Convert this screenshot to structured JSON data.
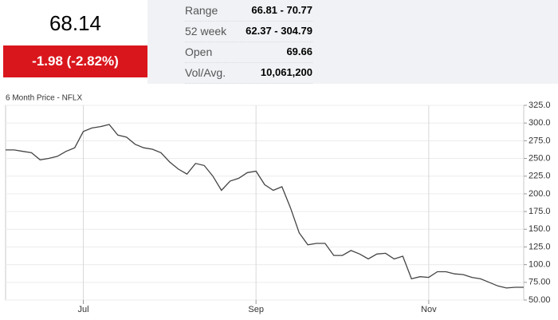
{
  "quote": {
    "price": "68.14",
    "change": "-1.98 (-2.82%)",
    "stats": [
      {
        "label": "Range",
        "value": "66.81 - 70.77"
      },
      {
        "label": "52 week",
        "value": "62.37 - 304.79"
      },
      {
        "label": "Open",
        "value": "69.66"
      },
      {
        "label": "Vol/Avg.",
        "value": "10,061,200"
      }
    ]
  },
  "chart_data": {
    "type": "line",
    "title": "6 Month Price - NFLX",
    "categories": [
      null,
      null,
      null,
      null,
      null,
      null,
      null,
      null,
      null,
      "Jul",
      null,
      null,
      null,
      null,
      null,
      null,
      null,
      null,
      null,
      null,
      null,
      null,
      null,
      null,
      null,
      null,
      null,
      null,
      null,
      "Sep",
      null,
      null,
      null,
      null,
      null,
      null,
      null,
      null,
      null,
      null,
      null,
      null,
      null,
      null,
      null,
      null,
      null,
      null,
      null,
      "Nov",
      null,
      null,
      null,
      null,
      null,
      null,
      null,
      null,
      null,
      null,
      null
    ],
    "values": [
      262,
      262,
      260,
      258,
      248,
      250,
      253,
      260,
      265,
      288,
      293,
      295,
      298,
      283,
      280,
      270,
      265,
      263,
      258,
      245,
      235,
      228,
      243,
      240,
      225,
      205,
      218,
      222,
      230,
      232,
      213,
      205,
      210,
      180,
      145,
      128,
      130,
      130,
      113,
      113,
      120,
      115,
      108,
      115,
      116,
      108,
      112,
      80,
      83,
      82,
      90,
      90,
      87,
      86,
      82,
      80,
      75,
      70,
      67,
      68,
      68
    ],
    "color": "#444444",
    "ylim": [
      50,
      325
    ],
    "yticks": [
      {
        "value": 50,
        "label": "50.00"
      },
      {
        "value": 75,
        "label": "75.00"
      },
      {
        "value": 100,
        "label": "100.0"
      },
      {
        "value": 125,
        "label": "125.0"
      },
      {
        "value": 150,
        "label": "150.0"
      },
      {
        "value": 175,
        "label": "175.0"
      },
      {
        "value": 200,
        "label": "200.0"
      },
      {
        "value": 225,
        "label": "225.0"
      },
      {
        "value": 250,
        "label": "250.0"
      },
      {
        "value": 275,
        "label": "275.0"
      },
      {
        "value": 300,
        "label": "300.0"
      },
      {
        "value": 325,
        "label": "325.0"
      }
    ],
    "grid": true
  }
}
